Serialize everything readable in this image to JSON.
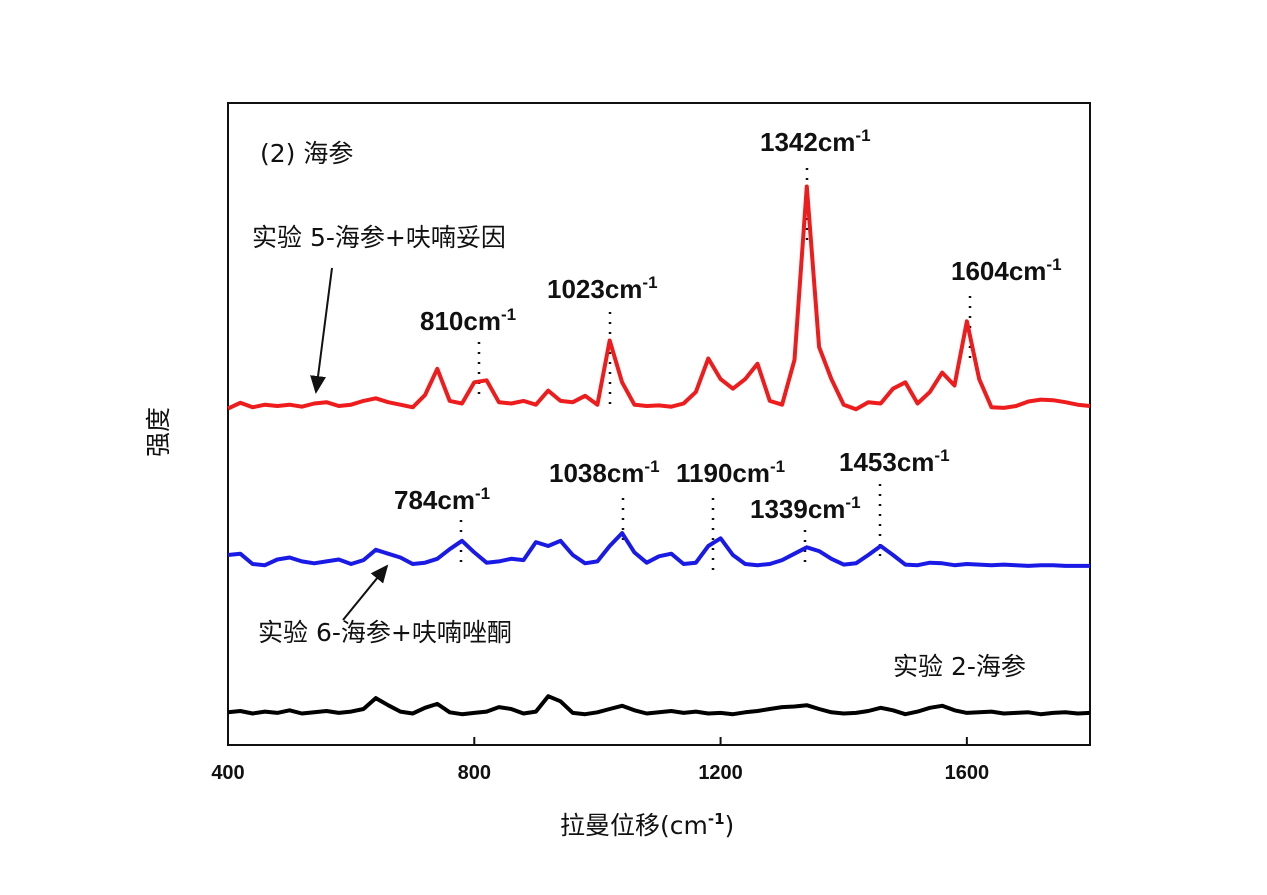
{
  "chart_data": {
    "type": "line",
    "panel_label": "(2) 海参",
    "x_label": [
      "拉曼位移(cm",
      "-1",
      ")"
    ],
    "y_label": "强度",
    "xlim": [
      400,
      1800
    ],
    "xticks": [
      400,
      800,
      1200,
      1600
    ],
    "ylim": [
      0,
      100
    ],
    "x": [
      400,
      420,
      440,
      460,
      480,
      500,
      520,
      540,
      560,
      580,
      600,
      620,
      640,
      660,
      680,
      700,
      720,
      740,
      760,
      780,
      800,
      820,
      840,
      860,
      880,
      900,
      920,
      940,
      960,
      980,
      1000,
      1020,
      1040,
      1060,
      1080,
      1100,
      1120,
      1140,
      1160,
      1180,
      1200,
      1220,
      1240,
      1260,
      1280,
      1300,
      1320,
      1340,
      1360,
      1380,
      1400,
      1420,
      1440,
      1460,
      1480,
      1500,
      1520,
      1540,
      1560,
      1580,
      1600,
      1620,
      1640,
      1660,
      1680,
      1700,
      1720,
      1740,
      1760,
      1780,
      1800
    ],
    "series": [
      {
        "name": "实验 5-海参+呋喃妥因",
        "color": "#ee1c1c",
        "values": [
          52.4,
          53.3,
          52.6,
          53.0,
          52.8,
          53.0,
          52.7,
          53.2,
          53.4,
          52.8,
          53.0,
          53.6,
          54.0,
          53.4,
          53.0,
          52.6,
          54.5,
          58.6,
          53.6,
          53.2,
          56.5,
          56.8,
          53.4,
          53.2,
          53.6,
          53.0,
          55.2,
          53.6,
          53.4,
          54.4,
          53.0,
          63.0,
          56.5,
          53.0,
          52.8,
          52.9,
          52.7,
          53.2,
          55.0,
          60.2,
          57.0,
          55.5,
          57.0,
          59.4,
          53.6,
          53.0,
          60.0,
          87.0,
          62.0,
          57.0,
          53.0,
          52.3,
          53.4,
          53.2,
          55.5,
          56.5,
          53.2,
          55.0,
          58.0,
          56.0,
          66.0,
          57.0,
          52.6,
          52.5,
          52.8,
          53.5,
          53.8,
          53.7,
          53.4,
          53.0,
          52.8
        ]
      },
      {
        "name": "实验 6-海参+呋喃唑酮",
        "color": "#1a1ae6",
        "values": [
          29.6,
          29.8,
          28.2,
          28.0,
          28.9,
          29.2,
          28.6,
          28.3,
          28.6,
          28.9,
          28.2,
          28.8,
          30.4,
          29.8,
          29.2,
          28.2,
          28.4,
          29.0,
          30.5,
          31.8,
          30.0,
          28.4,
          28.6,
          29.0,
          28.8,
          31.6,
          31.0,
          31.8,
          29.6,
          28.3,
          28.6,
          31.0,
          33.0,
          30.0,
          28.4,
          29.4,
          29.8,
          28.2,
          28.4,
          31.0,
          32.2,
          29.6,
          28.2,
          28.0,
          28.2,
          28.8,
          29.8,
          30.8,
          30.2,
          29.0,
          28.1,
          28.3,
          29.6,
          31.0,
          29.6,
          28.1,
          28.0,
          28.4,
          28.3,
          28.0,
          28.2,
          28.1,
          28.0,
          28.1,
          28.0,
          27.9,
          28.0,
          28.0,
          27.9,
          27.9,
          27.9
        ]
      },
      {
        "name": "实验 2-海参",
        "color": "#000000",
        "values": [
          5.1,
          5.3,
          4.9,
          5.2,
          5.0,
          5.4,
          4.9,
          5.1,
          5.3,
          5.0,
          5.2,
          5.6,
          7.3,
          6.2,
          5.2,
          4.9,
          5.8,
          6.4,
          5.1,
          4.8,
          5.0,
          5.2,
          5.9,
          5.6,
          4.9,
          5.2,
          7.6,
          6.8,
          5.0,
          4.8,
          5.1,
          5.6,
          6.1,
          5.4,
          4.9,
          5.1,
          5.3,
          5.0,
          5.2,
          4.9,
          5.0,
          4.8,
          5.1,
          5.3,
          5.6,
          5.9,
          6.0,
          6.2,
          5.6,
          5.1,
          4.9,
          5.0,
          5.3,
          5.8,
          5.4,
          4.8,
          5.2,
          5.8,
          6.1,
          5.4,
          5.0,
          5.1,
          5.2,
          4.9,
          5.0,
          5.1,
          4.8,
          5.0,
          5.1,
          4.9,
          5.0
        ]
      }
    ],
    "annotations": [
      {
        "text": "810cm",
        "sup": "-1"
      },
      {
        "text": "1023cm",
        "sup": "-1"
      },
      {
        "text": "1342cm",
        "sup": "-1"
      },
      {
        "text": "1604cm",
        "sup": "-1"
      },
      {
        "text": "784cm",
        "sup": "-1"
      },
      {
        "text": "1038cm",
        "sup": "-1"
      },
      {
        "text": "1190cm",
        "sup": "-1"
      },
      {
        "text": "1339cm",
        "sup": "-1"
      },
      {
        "text": "1453cm",
        "sup": "-1"
      }
    ]
  }
}
